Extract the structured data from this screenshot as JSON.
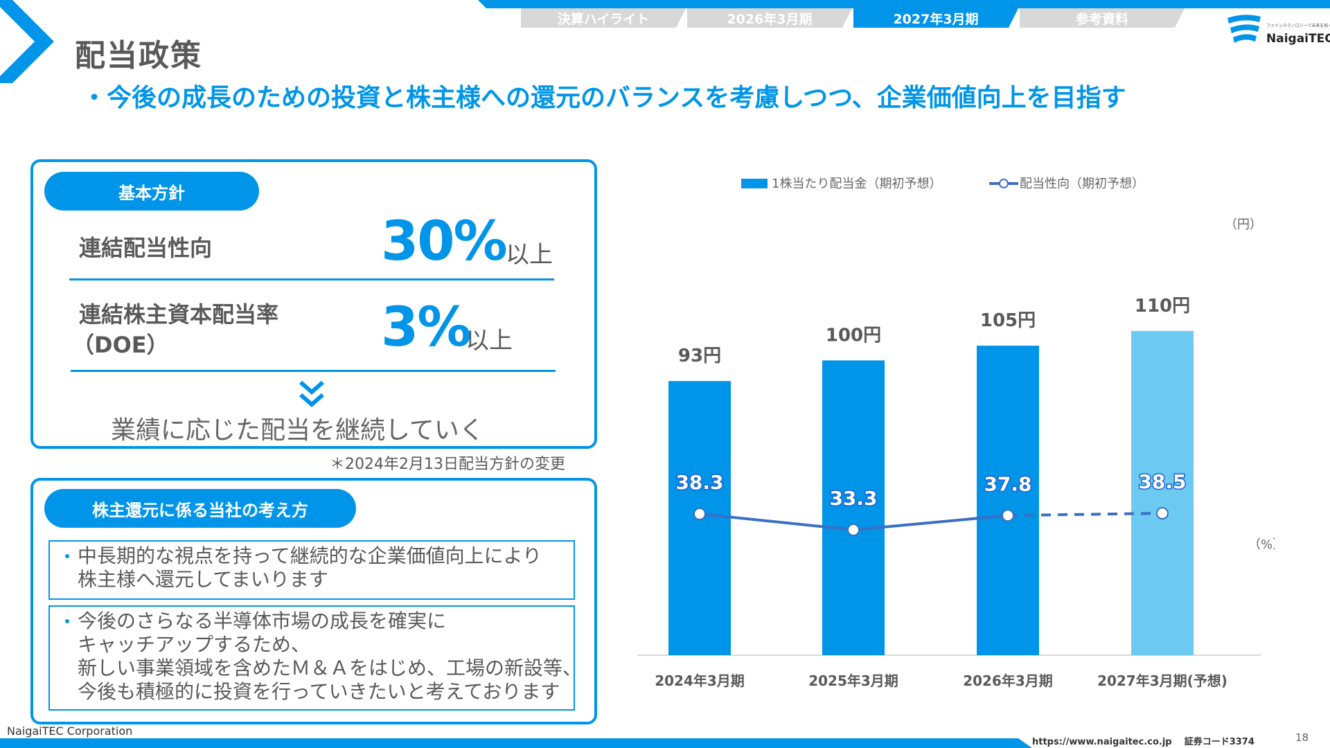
{
  "nav": {
    "tabs": [
      {
        "label": "決算ハイライト"
      },
      {
        "label": "2026年3月期"
      },
      {
        "label": "2027年3月期"
      },
      {
        "label": "参考資料"
      }
    ],
    "active_tab": "2027年3月期"
  },
  "logo": {
    "name": "NaigaiTEC",
    "tagline": "ファインテクノロジーで未来を拓く"
  },
  "page": {
    "title": "配当政策",
    "subtitle": "・今後の成長のための投資と株主様への還元のバランスを考慮しつつ、企業価値向上を目指す"
  },
  "policy_box": {
    "pill": "基本方針",
    "row1": {
      "label": "連結配当性向",
      "value": "30%",
      "suffix": "以上"
    },
    "row2": {
      "label_line1": "連結株主資本配当率",
      "label_line2": "（DOE）",
      "value": "3%",
      "suffix": "以上"
    },
    "conclusion": "業績に応じた配当を継続していく",
    "footnote": "＊2024年2月13日配当方針の変更"
  },
  "return_box": {
    "pill": "株主還元に係る当社の考え方",
    "bullet1": [
      "中長期的な視点を持って継続的な企業価値向上により",
      "株主様へ還元してまいります"
    ],
    "bullet2": [
      "今後のさらなる半導体市場の成長を確実に",
      "キャッチアップするため、",
      "新しい事業領域を含めたＭ＆Ａをはじめ、工場の新設等、",
      "今後も積極的に投資を行っていきたいと考えております"
    ]
  },
  "chart_data": {
    "type": "bar",
    "categories": [
      "2024年3月期",
      "2025年3月期",
      "2026年3月期",
      "2027年3月期(予想)"
    ],
    "series": [
      {
        "name": "1株当たり配当金（期初予想）",
        "values": [
          93,
          100,
          105,
          110
        ],
        "labels": [
          "93円",
          "100円",
          "105円",
          "110円"
        ],
        "unit": "円",
        "color": "#0095e8",
        "forecast_color": "#6ccaf2"
      },
      {
        "name": "配当性向（期初予想）",
        "type": "line",
        "values": [
          38.3,
          33.3,
          37.8,
          38.5
        ],
        "labels": [
          "38.3",
          "33.3",
          "37.8",
          "38.5"
        ],
        "unit": "%",
        "color": "#3a6fc4",
        "dashed_from_index": 2
      }
    ],
    "left_unit": "（円）",
    "right_unit": "（%）",
    "ylim_bar": [
      0,
      130
    ],
    "ylim_line": [
      0,
      100
    ]
  },
  "footer": {
    "company": "NaigaiTEC Corporation",
    "url": "https://www.naigaitec.co.jp",
    "code": "証券コード3374",
    "page_number": "18"
  }
}
